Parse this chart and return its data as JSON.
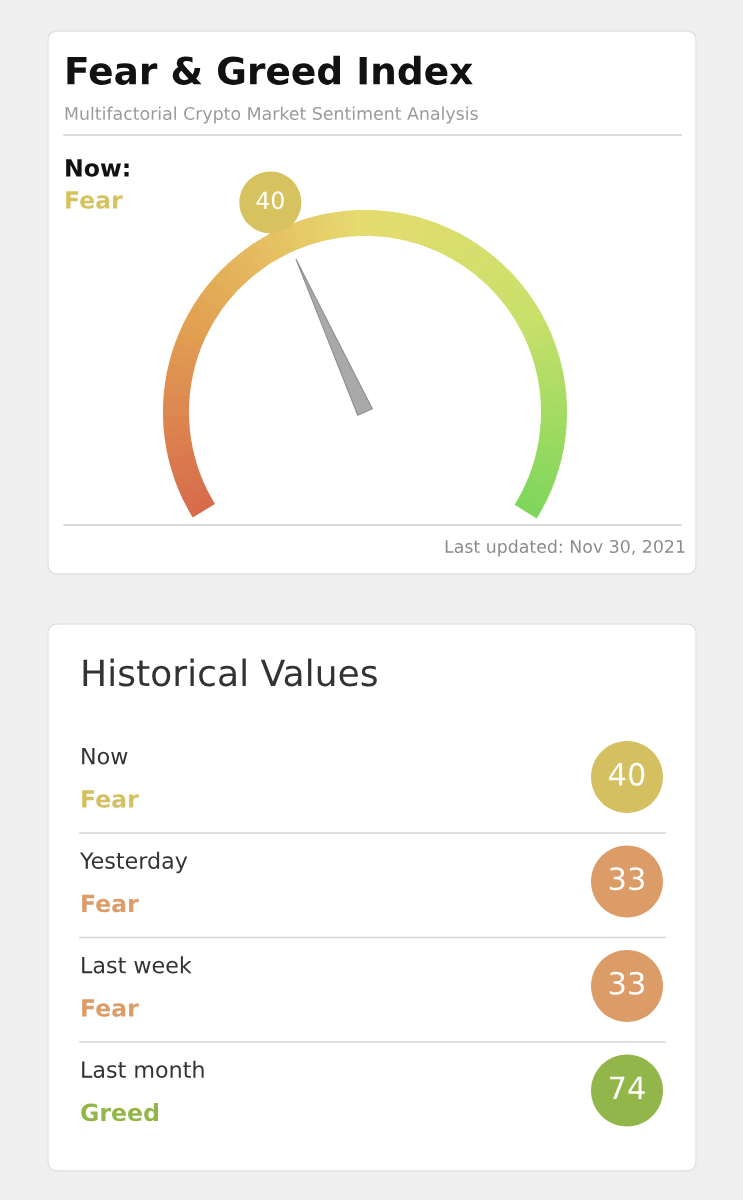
{
  "chart_data": [
    {
      "type": "other",
      "title": "Fear & Greed Index",
      "subtitle": "Multifactorial Crypto Market Sentiment Analysis",
      "values": [
        40
      ],
      "colors": [
        "#d6c25e"
      ],
      "data_labels": true,
      "annotations": [
        "Now:",
        "Fear",
        "Last updated: Nov 30, 2021"
      ]
    },
    {
      "type": "other",
      "title": "Historical Values",
      "values": [
        40,
        33,
        33,
        74
      ],
      "colors": [
        "#d4c060",
        "#dc9c68",
        "#dc9c68",
        "#93b64a"
      ],
      "data_labels": true,
      "annotations": [
        "Now",
        "Fear",
        "Yesterday",
        "Fear",
        "Last week",
        "Fear",
        "Last month",
        "Greed"
      ]
    }
  ]
}
